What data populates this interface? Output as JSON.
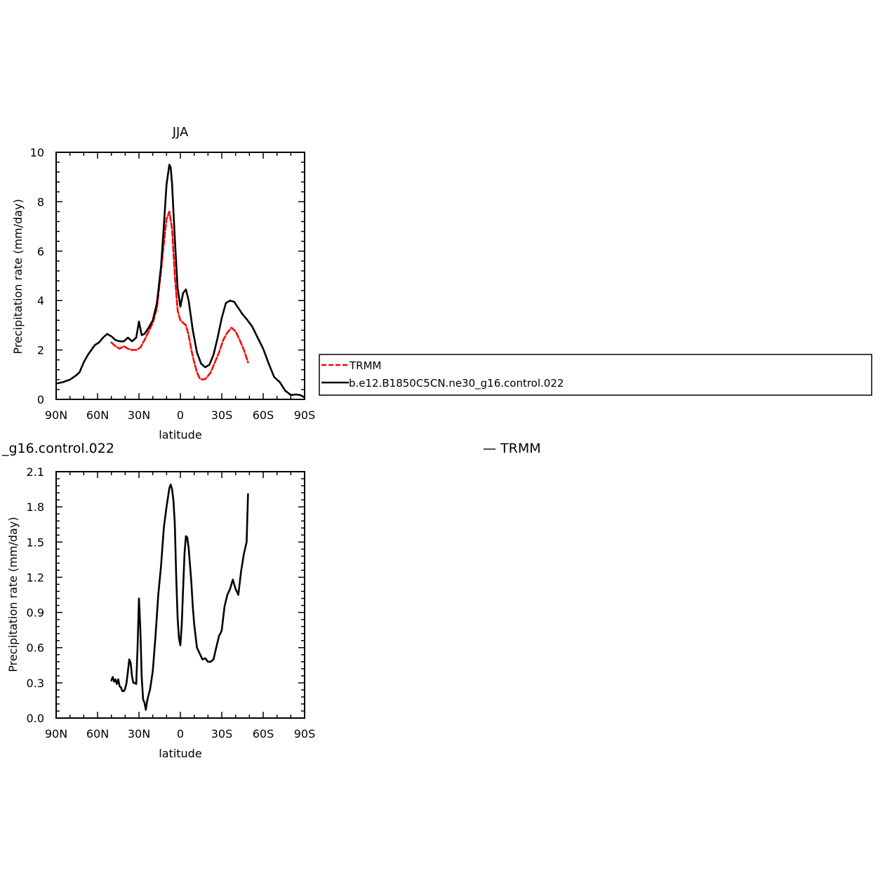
{
  "chart_data": [
    {
      "type": "line",
      "title": "JJA",
      "xlabel": "latitude",
      "ylabel": "Precipitation rate (mm/day)",
      "xlim": [
        90,
        -90
      ],
      "ylim": [
        0,
        10
      ],
      "x_tick_values": [
        90,
        60,
        30,
        0,
        -30,
        -60,
        -90
      ],
      "x_tick_labels": [
        "90N",
        "60N",
        "30N",
        "0",
        "30S",
        "60S",
        "90S"
      ],
      "y_tick_values": [
        0,
        2,
        4,
        6,
        8,
        10
      ],
      "y_tick_labels": [
        "0",
        "2",
        "4",
        "6",
        "8",
        "10"
      ],
      "legend_placement": "right of plot, boxed",
      "series": [
        {
          "name": "TRMM",
          "color": "#ff0000",
          "style": "dashed",
          "x": [
            50,
            47,
            44,
            41,
            38,
            35,
            32,
            29,
            26,
            23,
            20,
            17,
            14,
            12,
            10,
            8,
            6,
            4,
            2,
            0,
            -2,
            -4,
            -6,
            -8,
            -10,
            -12,
            -14,
            -16,
            -18,
            -20,
            -22,
            -25,
            -28,
            -31,
            -34,
            -37,
            -40,
            -43,
            -46,
            -49
          ],
          "y": [
            2.3,
            2.15,
            2.05,
            2.15,
            2.05,
            2.0,
            2.0,
            2.1,
            2.4,
            2.75,
            3.1,
            3.7,
            5.2,
            6.3,
            7.3,
            7.6,
            6.9,
            5.0,
            3.6,
            3.2,
            3.1,
            3.0,
            2.6,
            2.0,
            1.5,
            1.1,
            0.85,
            0.8,
            0.82,
            0.95,
            1.1,
            1.5,
            1.9,
            2.4,
            2.7,
            2.9,
            2.75,
            2.4,
            2.0,
            1.5
          ]
        },
        {
          "name": "b.e12.B1850C5CN.ne30_g16.control.022",
          "color": "#000000",
          "style": "solid",
          "x": [
            89,
            85,
            80,
            76,
            73,
            70,
            67,
            62,
            59,
            56,
            53,
            50,
            47,
            44,
            41,
            38,
            35,
            32,
            30,
            28,
            26,
            23,
            20,
            17,
            14,
            12,
            10,
            8,
            7,
            6,
            4,
            2,
            0,
            -2,
            -4,
            -6,
            -9,
            -12,
            -15,
            -18,
            -21,
            -24,
            -27,
            -30,
            -33,
            -36,
            -39,
            -42,
            -45,
            -48,
            -52,
            -56,
            -60,
            -64,
            -68,
            -72,
            -76,
            -80,
            -84,
            -87,
            -90
          ],
          "y": [
            0.65,
            0.7,
            0.8,
            0.95,
            1.1,
            1.5,
            1.8,
            2.2,
            2.3,
            2.5,
            2.65,
            2.55,
            2.4,
            2.35,
            2.35,
            2.5,
            2.35,
            2.5,
            3.15,
            2.6,
            2.65,
            2.9,
            3.2,
            3.9,
            5.4,
            7.0,
            8.7,
            9.5,
            9.4,
            8.7,
            6.5,
            4.5,
            3.75,
            4.3,
            4.45,
            4.0,
            2.8,
            1.9,
            1.45,
            1.3,
            1.4,
            1.8,
            2.5,
            3.3,
            3.9,
            4.0,
            3.95,
            3.7,
            3.45,
            3.25,
            2.95,
            2.5,
            2.05,
            1.45,
            0.9,
            0.7,
            0.35,
            0.18,
            0.2,
            0.17,
            0.08
          ]
        }
      ]
    },
    {
      "type": "line",
      "title": "_g16.control.022",
      "right_label": "— TRMM",
      "xlabel": "latitude",
      "ylabel": "Precipitation rate (mm/day)",
      "xlim": [
        90,
        -90
      ],
      "ylim": [
        0.0,
        2.1
      ],
      "x_tick_values": [
        90,
        60,
        30,
        0,
        -30,
        -60,
        -90
      ],
      "x_tick_labels": [
        "90N",
        "60N",
        "30N",
        "0",
        "30S",
        "60S",
        "90S"
      ],
      "y_tick_values": [
        0.0,
        0.3,
        0.6,
        0.9,
        1.2,
        1.5,
        1.8,
        2.1
      ],
      "y_tick_labels": [
        "0.0",
        "0.3",
        "0.6",
        "0.9",
        "1.2",
        "1.5",
        "1.8",
        "2.1"
      ],
      "series": [
        {
          "color": "#000000",
          "style": "solid",
          "x": [
            50,
            49,
            48,
            47,
            46,
            45,
            44,
            43,
            42,
            41,
            40,
            39,
            38,
            37,
            36,
            35,
            34,
            33,
            32,
            31,
            30,
            29,
            28,
            27,
            26,
            25,
            24,
            23,
            22,
            20,
            18,
            16,
            14,
            12,
            10,
            8,
            7,
            6,
            5,
            4,
            3,
            2,
            1,
            0,
            -1,
            -2,
            -3,
            -4,
            -5,
            -6,
            -7,
            -8,
            -9,
            -10,
            -12,
            -14,
            -16,
            -18,
            -20,
            -22,
            -24,
            -26,
            -28,
            -29,
            -30,
            -32,
            -34,
            -36,
            -38,
            -40,
            -42,
            -44,
            -46,
            -48,
            -49
          ],
          "y": [
            0.32,
            0.35,
            0.31,
            0.33,
            0.29,
            0.33,
            0.27,
            0.26,
            0.23,
            0.23,
            0.25,
            0.3,
            0.4,
            0.5,
            0.47,
            0.35,
            0.3,
            0.3,
            0.29,
            0.6,
            1.02,
            0.75,
            0.35,
            0.16,
            0.13,
            0.07,
            0.15,
            0.2,
            0.24,
            0.4,
            0.7,
            1.05,
            1.3,
            1.62,
            1.8,
            1.96,
            1.99,
            1.95,
            1.85,
            1.65,
            1.2,
            0.85,
            0.68,
            0.62,
            0.8,
            1.1,
            1.4,
            1.55,
            1.54,
            1.45,
            1.3,
            1.15,
            0.95,
            0.8,
            0.6,
            0.55,
            0.5,
            0.51,
            0.48,
            0.48,
            0.5,
            0.6,
            0.7,
            0.72,
            0.75,
            0.95,
            1.05,
            1.1,
            1.18,
            1.1,
            1.05,
            1.25,
            1.4,
            1.5,
            1.91
          ]
        }
      ]
    }
  ]
}
